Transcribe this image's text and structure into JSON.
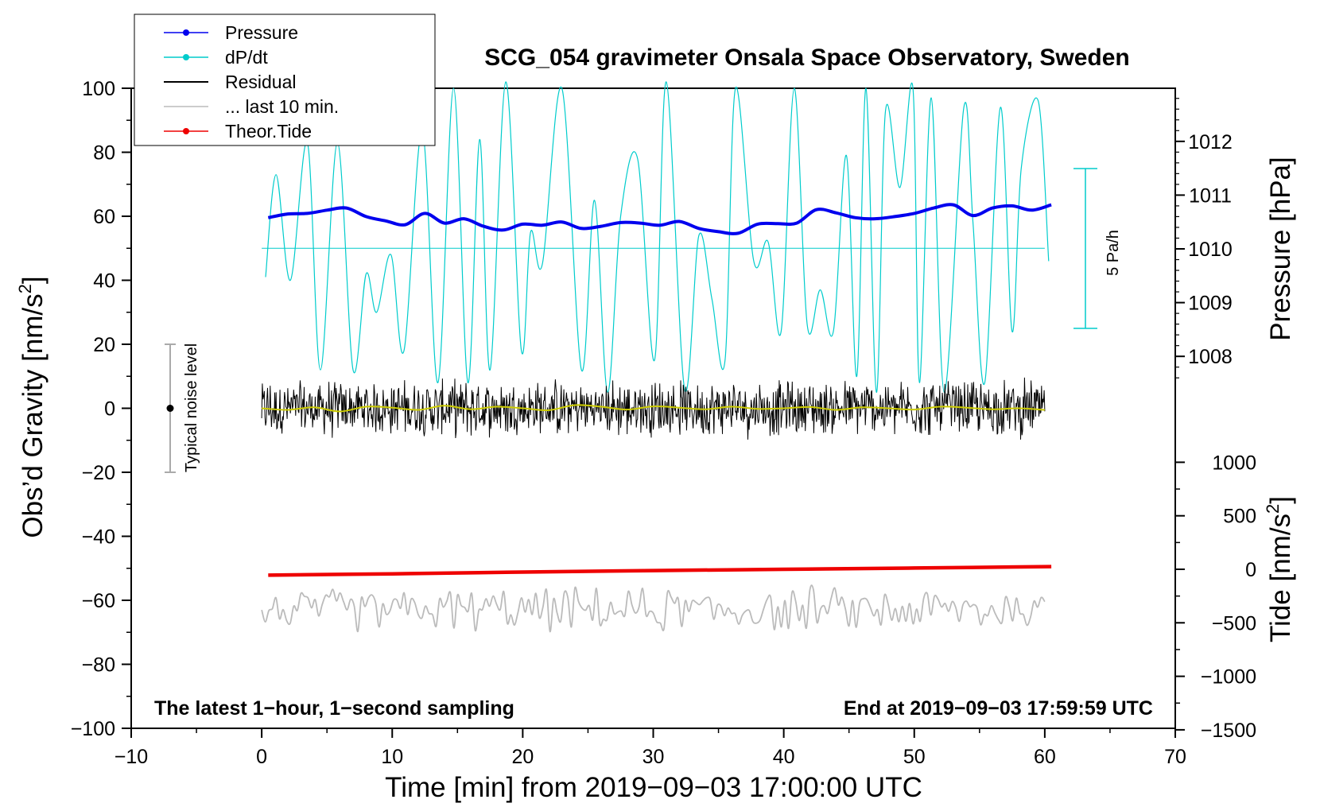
{
  "chart_data": {
    "type": "line",
    "title": "SCG_054 gravimeter Onsala Space Observatory, Sweden",
    "xlabel": "Time [min] from 2019−09−03 17:00:00 UTC",
    "ylabel_left": "Obs’d Gravity [nm/s",
    "ylabel_left_sup": "2",
    "ylabel_left_end": "]",
    "ylabel_right_pressure": "Pressure [hPa]",
    "ylabel_right_tide": "Tide [nm/s",
    "ylabel_right_tide_sup": "2",
    "ylabel_right_tide_end": "]",
    "xlim": [
      -10,
      70
    ],
    "ylim": [
      -100,
      100
    ],
    "pressure_lim": [
      1007.0,
      1013.0
    ],
    "tide_lim": [
      -1500,
      1500
    ],
    "x_ticks": [
      "−10",
      "0",
      "10",
      "20",
      "30",
      "40",
      "50",
      "60",
      "70"
    ],
    "x_tick_values": [
      -10,
      0,
      10,
      20,
      30,
      40,
      50,
      60,
      70
    ],
    "y_ticks": [
      "100",
      "80",
      "60",
      "40",
      "20",
      "0",
      "−20",
      "−40",
      "−60",
      "−80",
      "−100"
    ],
    "y_tick_values": [
      100,
      80,
      60,
      40,
      20,
      0,
      -20,
      -40,
      -60,
      -80,
      -100
    ],
    "pressure_ticks": [
      "1012",
      "1011",
      "1010",
      "1009",
      "1008"
    ],
    "pressure_tick_values": [
      1012,
      1011,
      1010,
      1009,
      1008
    ],
    "tide_ticks": [
      "1000",
      "500",
      "0",
      "−500",
      "−1000",
      "−1500"
    ],
    "tide_tick_values": [
      1000,
      500,
      0,
      -500,
      -1000,
      -1500
    ],
    "legend": [
      {
        "label": "Pressure",
        "color": "#0000ee",
        "marker": true
      },
      {
        "label": "dP/dt",
        "color": "#00cccc",
        "marker": true
      },
      {
        "label": "Residual",
        "color": "#000000",
        "marker": false
      },
      {
        "label": "... last 10 min.",
        "color": "#bbbbbb",
        "marker": false
      },
      {
        "label": "Theor.Tide",
        "color": "#ee0000",
        "marker": true
      }
    ],
    "footer_left": "The latest 1−hour, 1−second sampling",
    "footer_right": "End at 2019−09−03 17:59:59 UTC",
    "noise_label": "Typical noise level",
    "noise_range": [
      -20,
      20
    ],
    "dpdt_scale_label": "5 Pa/h",
    "dpdt_baseline": 50,
    "series": [
      {
        "name": "Pressure",
        "color": "#0000ee",
        "axis": "pressure",
        "x": [
          0.5,
          2,
          3.5,
          5,
          6.5,
          8,
          9.5,
          11,
          12.5,
          14,
          15.5,
          17,
          18.5,
          20,
          21.5,
          23,
          24.5,
          26,
          27.5,
          29,
          30.5,
          32,
          33.5,
          35,
          36.5,
          38,
          39.5,
          41,
          42.5,
          44,
          45.5,
          47,
          48.5,
          50,
          51.5,
          53,
          54.5,
          56,
          57.5,
          59,
          60.5
        ],
        "values": [
          1010.58,
          1010.65,
          1010.66,
          1010.72,
          1010.76,
          1010.6,
          1010.52,
          1010.45,
          1010.66,
          1010.48,
          1010.56,
          1010.42,
          1010.35,
          1010.46,
          1010.44,
          1010.5,
          1010.38,
          1010.42,
          1010.49,
          1010.48,
          1010.44,
          1010.51,
          1010.38,
          1010.32,
          1010.29,
          1010.46,
          1010.47,
          1010.48,
          1010.73,
          1010.67,
          1010.58,
          1010.56,
          1010.6,
          1010.66,
          1010.76,
          1010.82,
          1010.62,
          1010.76,
          1010.8,
          1010.72,
          1010.82
        ]
      },
      {
        "name": "dP/dt",
        "color": "#00cccc",
        "axis": "gravity",
        "x": [
          0.3,
          1.1,
          2.2,
          3.5,
          4.5,
          5.8,
          7.0,
          8.0,
          8.8,
          9.9,
          10.9,
          12.3,
          13.5,
          14.7,
          15.8,
          16.7,
          17.5,
          18.7,
          19.9,
          20.6,
          21.5,
          23.0,
          24.5,
          25.5,
          26.5,
          27.5,
          28.8,
          30.1,
          31.0,
          32.4,
          33.5,
          34.5,
          35.5,
          36.3,
          37.7,
          38.8,
          39.8,
          40.8,
          41.8,
          42.8,
          43.8,
          44.8,
          45.6,
          46.3,
          47.1,
          47.8,
          48.9,
          49.9,
          50.4,
          51.3,
          52.3,
          53.8,
          54.5,
          55.4,
          56.6,
          57.5,
          58.2,
          59.5,
          60.3
        ],
        "values": [
          41,
          73,
          40,
          83,
          12,
          83,
          12,
          42,
          30,
          48,
          18,
          87,
          8,
          100,
          8,
          84,
          12,
          102,
          18,
          55,
          45,
          100,
          12,
          65,
          5,
          60,
          78,
          15,
          102,
          6,
          54,
          34,
          15,
          100,
          46,
          52,
          24,
          100,
          26,
          37,
          24,
          79,
          10,
          100,
          5,
          93,
          69,
          100,
          8,
          97,
          5,
          94,
          58,
          8,
          94,
          24,
          75,
          96,
          46
        ]
      },
      {
        "name": "Residual",
        "color": "#000000",
        "axis": "gravity",
        "start": 0,
        "end": 60,
        "mean": 0,
        "band": 10
      },
      {
        "name": "Residual smoothed",
        "color": "#cccc00",
        "axis": "gravity",
        "x": [
          0,
          2,
          4,
          6,
          8,
          10,
          12,
          14,
          16,
          18,
          20,
          22,
          24,
          26,
          28,
          30,
          32,
          34,
          36,
          38,
          40,
          42,
          44,
          46,
          48,
          50,
          52,
          54,
          56,
          58,
          60
        ],
        "values": [
          0,
          -0.5,
          0.3,
          -1,
          0.5,
          0.2,
          -0.5,
          0.8,
          -0.3,
          0.5,
          0,
          -0.6,
          1,
          0.5,
          -0.4,
          0.6,
          0.2,
          -0.3,
          0.5,
          -0.2,
          0,
          0.4,
          -0.5,
          0.3,
          0,
          -0.4,
          0.5,
          0.2,
          -0.3,
          0,
          -0.5
        ]
      },
      {
        "name": "Theor.Tide",
        "color": "#ee0000",
        "axis": "tide",
        "x": [
          0.5,
          10,
          20,
          30,
          40,
          50,
          60.5
        ],
        "values": [
          -55,
          -42,
          -26,
          -12,
          0,
          12,
          25
        ]
      },
      {
        "name": "... last 10 min.",
        "color": "#bbbbbb",
        "axis": "gravity",
        "start": 0,
        "end": 60,
        "mean": -63,
        "band": 6
      }
    ]
  }
}
